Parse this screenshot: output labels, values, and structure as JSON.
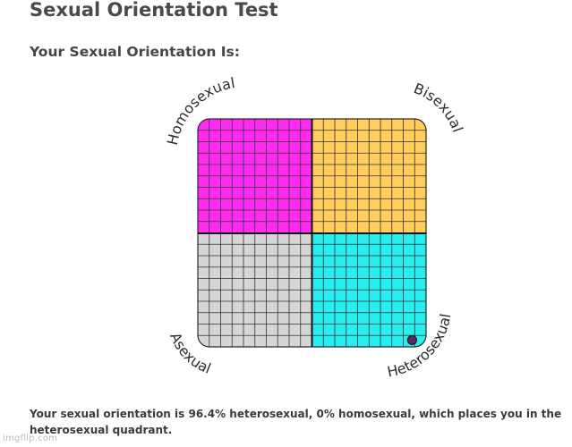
{
  "page": {
    "title": "Sexual Orientation Test",
    "subtitle": "Your Sexual Orientation Is:",
    "result": "Your sexual orientation is 96.4% heterosexual, 0% homosexual, which places you in the heterosexual quadrant.",
    "watermark": "imgflip.com"
  },
  "chart_data": {
    "type": "scatter",
    "title": "",
    "grid": true,
    "quadrants": [
      {
        "label": "Homosexual",
        "position": "top-left",
        "color": "#ff2bf0"
      },
      {
        "label": "Bisexual",
        "position": "top-right",
        "color": "#ffce5c"
      },
      {
        "label": "Asexual",
        "position": "bottom-left",
        "color": "#d6d6d6"
      },
      {
        "label": "Heterosexual",
        "position": "bottom-right",
        "color": "#29eef0"
      }
    ],
    "point": {
      "heterosexual_pct": 96.4,
      "homosexual_pct": 0,
      "color": "#5a2a60"
    }
  }
}
